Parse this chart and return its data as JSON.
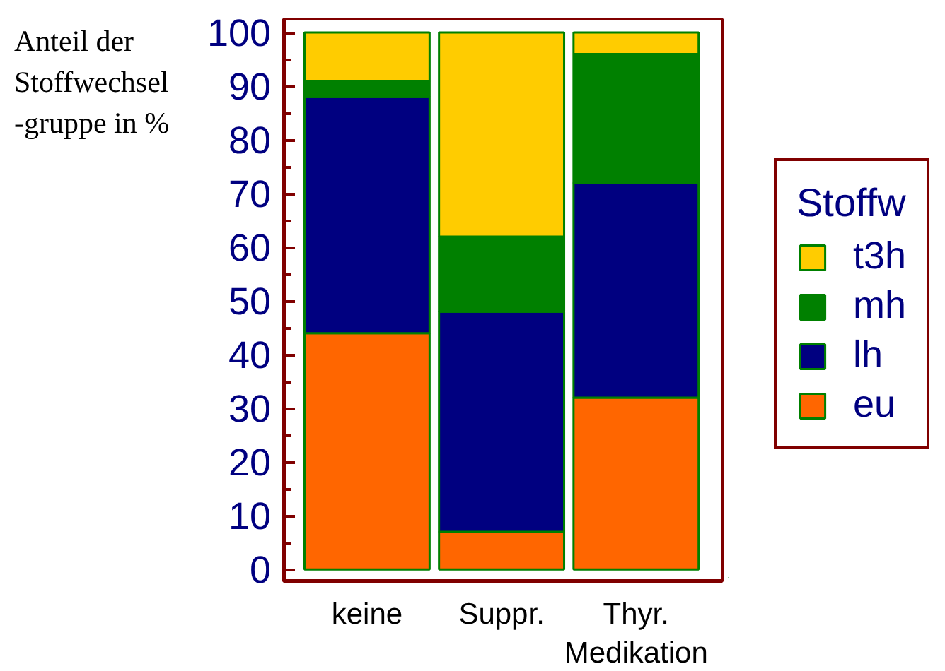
{
  "chart_data": {
    "type": "bar",
    "stacked": true,
    "ylabel": "Anteil der\nStoffwechsel\n-gruppe in %",
    "legend_title": "Stoffw",
    "categories": [
      "keine",
      "Suppr.",
      "Thyr.\nMedikation"
    ],
    "series": [
      {
        "name": "eu",
        "color": "#ff6600",
        "values": [
          44,
          7,
          32
        ]
      },
      {
        "name": "lh",
        "color": "#000080",
        "values": [
          44,
          41,
          40
        ]
      },
      {
        "name": "mh",
        "color": "#008000",
        "values": [
          3,
          14,
          24
        ]
      },
      {
        "name": "t3h",
        "color": "#ffcc00",
        "values": [
          9,
          38,
          4
        ]
      }
    ],
    "ylim": [
      -2.2,
      102.5
    ],
    "yticks": [
      0,
      {
        "value": 5,
        "label": null
      },
      10,
      {
        "value": 15,
        "label": null
      },
      20,
      {
        "value": 25,
        "label": null
      },
      30,
      {
        "value": 35,
        "label": null
      },
      40,
      {
        "value": 45,
        "label": null
      },
      50,
      {
        "value": 55,
        "label": null
      },
      60,
      {
        "value": 65,
        "label": null
      },
      70,
      {
        "value": 75,
        "label": null
      },
      80,
      {
        "value": 85,
        "label": null
      },
      90,
      {
        "value": 95,
        "label": null
      },
      100
    ],
    "legend": "right"
  }
}
